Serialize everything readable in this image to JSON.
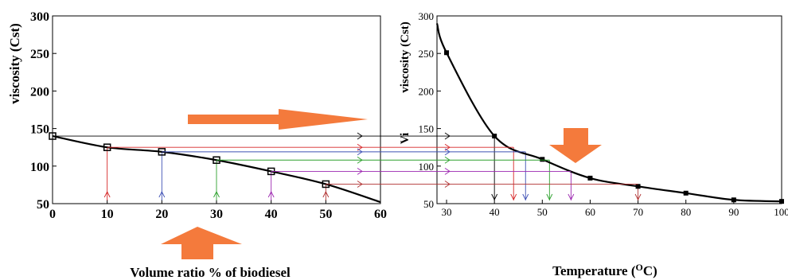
{
  "chart_data": [
    {
      "type": "line",
      "xlabel": "Volume ratio % of biodiesel",
      "ylabel": "viscosity (Cst)",
      "xlim": [
        0,
        60
      ],
      "ylim": [
        50,
        300
      ],
      "xticks": [
        0,
        10,
        20,
        30,
        40,
        50,
        60
      ],
      "yticks": [
        50,
        100,
        150,
        200,
        250,
        300
      ],
      "grid": false,
      "series": [
        {
          "x": [
            0,
            10,
            20,
            30,
            40,
            50
          ],
          "values": [
            140,
            125,
            119,
            108,
            93,
            76
          ],
          "color": "#000000"
        }
      ],
      "curve_end": {
        "x": 60,
        "y": 52
      }
    },
    {
      "type": "line",
      "xlabel": "Temperature (",
      "xlabel_sup": "O",
      "xlabel_tail": "C)",
      "ylabel": "viscosity (Cst)",
      "ylabel_overlap": "Vi",
      "xlim": [
        28,
        100
      ],
      "ylim": [
        50,
        300
      ],
      "xticks": [
        30,
        40,
        50,
        60,
        70,
        80,
        90,
        100
      ],
      "yticks": [
        50,
        100,
        150,
        200,
        250,
        300
      ],
      "grid": false,
      "series": [
        {
          "x": [
            30,
            40,
            50,
            60,
            70,
            80,
            90,
            100
          ],
          "values": [
            251,
            140,
            109,
            84,
            73,
            64,
            55,
            53
          ],
          "color": "#000000"
        }
      ],
      "curve_start": {
        "x": 28,
        "y": 290
      }
    }
  ],
  "annotations": {
    "connector_colors": [
      "#000000",
      "#d62728",
      "#3f51b5",
      "#2ca02c",
      "#9c27b0",
      "#b03030"
    ],
    "matched_temperatures": [
      40,
      44,
      46.5,
      51.5,
      56,
      70
    ],
    "arrow_color": "#f47a3c"
  }
}
